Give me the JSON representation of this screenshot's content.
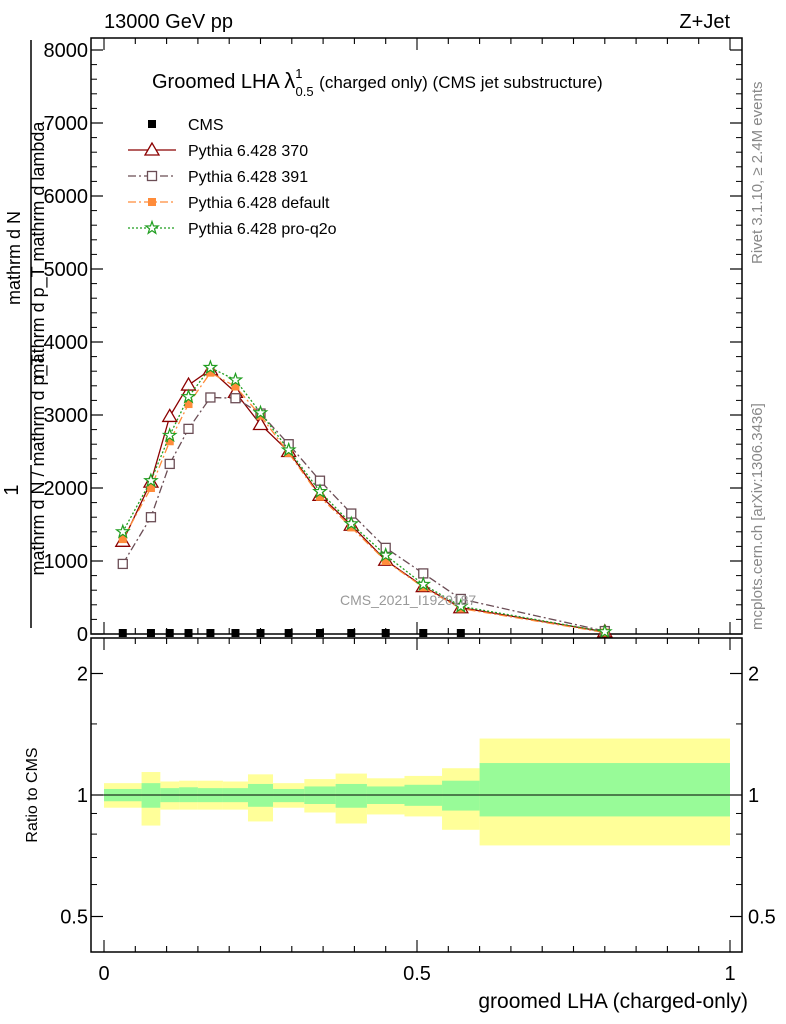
{
  "header": {
    "left": "13000 GeV pp",
    "right": "Z+Jet"
  },
  "side_labels": {
    "rivet": "Rivet 3.1.10, ≥ 2.4M events",
    "mcplots": "mcplots.cern.ch [arXiv:1306.3436]"
  },
  "watermark": "CMS_2021_I1920187",
  "chart_data": [
    {
      "type": "line",
      "title_main": "Groomed LHA",
      "title_lambda": "λ",
      "title_sup": "1",
      "title_sub": "0.5",
      "title_rest": "(charged only) (CMS jet substructure)",
      "ylabel_num": "mathrm d N",
      "ylabel_den": "mathrm d p_T mathrm d lambda",
      "ylabel_prefix_num": "1",
      "ylabel_prefix_den": "mathrm d N / mathrm d p_T",
      "xlim": [
        0,
        1
      ],
      "ylim": [
        0,
        8000
      ],
      "yticks": [
        0,
        1000,
        2000,
        3000,
        4000,
        5000,
        6000,
        7000,
        8000
      ],
      "ytick_labels": [
        "0",
        "1000",
        "2000",
        "3000",
        "4000",
        "5000",
        "6000",
        "7000",
        "8000"
      ],
      "legend_placement": "top-left",
      "series": [
        {
          "name": "CMS",
          "color": "#000000",
          "marker": "filled-square",
          "dash": "none",
          "x": [
            0.03,
            0.075,
            0.105,
            0.135,
            0.17,
            0.21,
            0.25,
            0.295,
            0.345,
            0.395,
            0.45,
            0.51,
            0.57
          ],
          "y": [
            0,
            0,
            0,
            0,
            0,
            0,
            0,
            0,
            0,
            0,
            0,
            0,
            0
          ]
        },
        {
          "name": "Pythia 6.428 370",
          "color": "#8b0000",
          "marker": "open-triangle",
          "dash": "solid",
          "x": [
            0.03,
            0.075,
            0.105,
            0.135,
            0.17,
            0.21,
            0.25,
            0.295,
            0.345,
            0.395,
            0.45,
            0.51,
            0.57,
            0.8
          ],
          "y": [
            1270,
            2080,
            2980,
            3410,
            3620,
            3310,
            2870,
            2500,
            1900,
            1490,
            1010,
            650,
            360,
            30
          ]
        },
        {
          "name": "Pythia 6.428 391",
          "color": "#6b4d55",
          "marker": "open-square",
          "dash": "dashdot",
          "x": [
            0.03,
            0.075,
            0.105,
            0.135,
            0.17,
            0.21,
            0.25,
            0.295,
            0.345,
            0.395,
            0.45,
            0.51,
            0.57,
            0.8
          ],
          "y": [
            960,
            1600,
            2330,
            2810,
            3240,
            3230,
            3020,
            2600,
            2100,
            1650,
            1180,
            830,
            480,
            40
          ]
        },
        {
          "name": "Pythia 6.428 default",
          "color": "#ff8c3a",
          "marker": "filled-square",
          "dash": "dashdot",
          "x": [
            0.03,
            0.075,
            0.105,
            0.135,
            0.17,
            0.21,
            0.25,
            0.295,
            0.345,
            0.395,
            0.45,
            0.51,
            0.57,
            0.8
          ],
          "y": [
            1300,
            2000,
            2640,
            3150,
            3580,
            3390,
            2990,
            2480,
            1880,
            1460,
            1000,
            640,
            350,
            20
          ]
        },
        {
          "name": "Pythia 6.428 pro-q2o",
          "color": "#1f9e1f",
          "marker": "open-star",
          "dash": "dotted",
          "x": [
            0.03,
            0.075,
            0.105,
            0.135,
            0.17,
            0.21,
            0.25,
            0.295,
            0.345,
            0.395,
            0.45,
            0.51,
            0.57,
            0.8
          ],
          "y": [
            1400,
            2100,
            2720,
            3250,
            3650,
            3480,
            3030,
            2520,
            1950,
            1510,
            1080,
            680,
            380,
            30
          ]
        }
      ]
    },
    {
      "type": "area",
      "ylabel": "Ratio to CMS",
      "xlabel": "groomed LHA (charged-only)",
      "xlim": [
        0,
        1
      ],
      "ylim": [
        0.35,
        2.3
      ],
      "xticks": [
        0,
        0.5,
        1
      ],
      "xtick_labels": [
        "0",
        "0.5",
        "1"
      ],
      "yticks": [
        0.5,
        1,
        2
      ],
      "ytick_labels": [
        "0.5",
        "1",
        "2"
      ],
      "bins": [
        {
          "lo": 0.0,
          "hi": 0.06,
          "inner": [
            0.965,
            1.035
          ],
          "outer": [
            0.93,
            1.07
          ]
        },
        {
          "lo": 0.06,
          "hi": 0.09,
          "inner": [
            0.93,
            1.07
          ],
          "outer": [
            0.84,
            1.14
          ]
        },
        {
          "lo": 0.09,
          "hi": 0.12,
          "inner": [
            0.96,
            1.04
          ],
          "outer": [
            0.92,
            1.08
          ]
        },
        {
          "lo": 0.12,
          "hi": 0.15,
          "inner": [
            0.96,
            1.045
          ],
          "outer": [
            0.92,
            1.085
          ]
        },
        {
          "lo": 0.15,
          "hi": 0.19,
          "inner": [
            0.96,
            1.04
          ],
          "outer": [
            0.92,
            1.085
          ]
        },
        {
          "lo": 0.19,
          "hi": 0.23,
          "inner": [
            0.96,
            1.04
          ],
          "outer": [
            0.92,
            1.08
          ]
        },
        {
          "lo": 0.23,
          "hi": 0.27,
          "inner": [
            0.935,
            1.065
          ],
          "outer": [
            0.86,
            1.125
          ]
        },
        {
          "lo": 0.27,
          "hi": 0.32,
          "inner": [
            0.96,
            1.035
          ],
          "outer": [
            0.93,
            1.07
          ]
        },
        {
          "lo": 0.32,
          "hi": 0.37,
          "inner": [
            0.95,
            1.05
          ],
          "outer": [
            0.905,
            1.095
          ]
        },
        {
          "lo": 0.37,
          "hi": 0.42,
          "inner": [
            0.93,
            1.065
          ],
          "outer": [
            0.85,
            1.13
          ]
        },
        {
          "lo": 0.42,
          "hi": 0.48,
          "inner": [
            0.95,
            1.05
          ],
          "outer": [
            0.895,
            1.1
          ]
        },
        {
          "lo": 0.48,
          "hi": 0.54,
          "inner": [
            0.94,
            1.06
          ],
          "outer": [
            0.885,
            1.115
          ]
        },
        {
          "lo": 0.54,
          "hi": 0.6,
          "inner": [
            0.915,
            1.085
          ],
          "outer": [
            0.82,
            1.165
          ]
        },
        {
          "lo": 0.6,
          "hi": 1.0,
          "inner": [
            0.885,
            1.2
          ],
          "outer": [
            0.75,
            1.38
          ]
        }
      ],
      "band_colors": {
        "inner": "#98fb98",
        "outer": "#ffff99"
      }
    }
  ]
}
